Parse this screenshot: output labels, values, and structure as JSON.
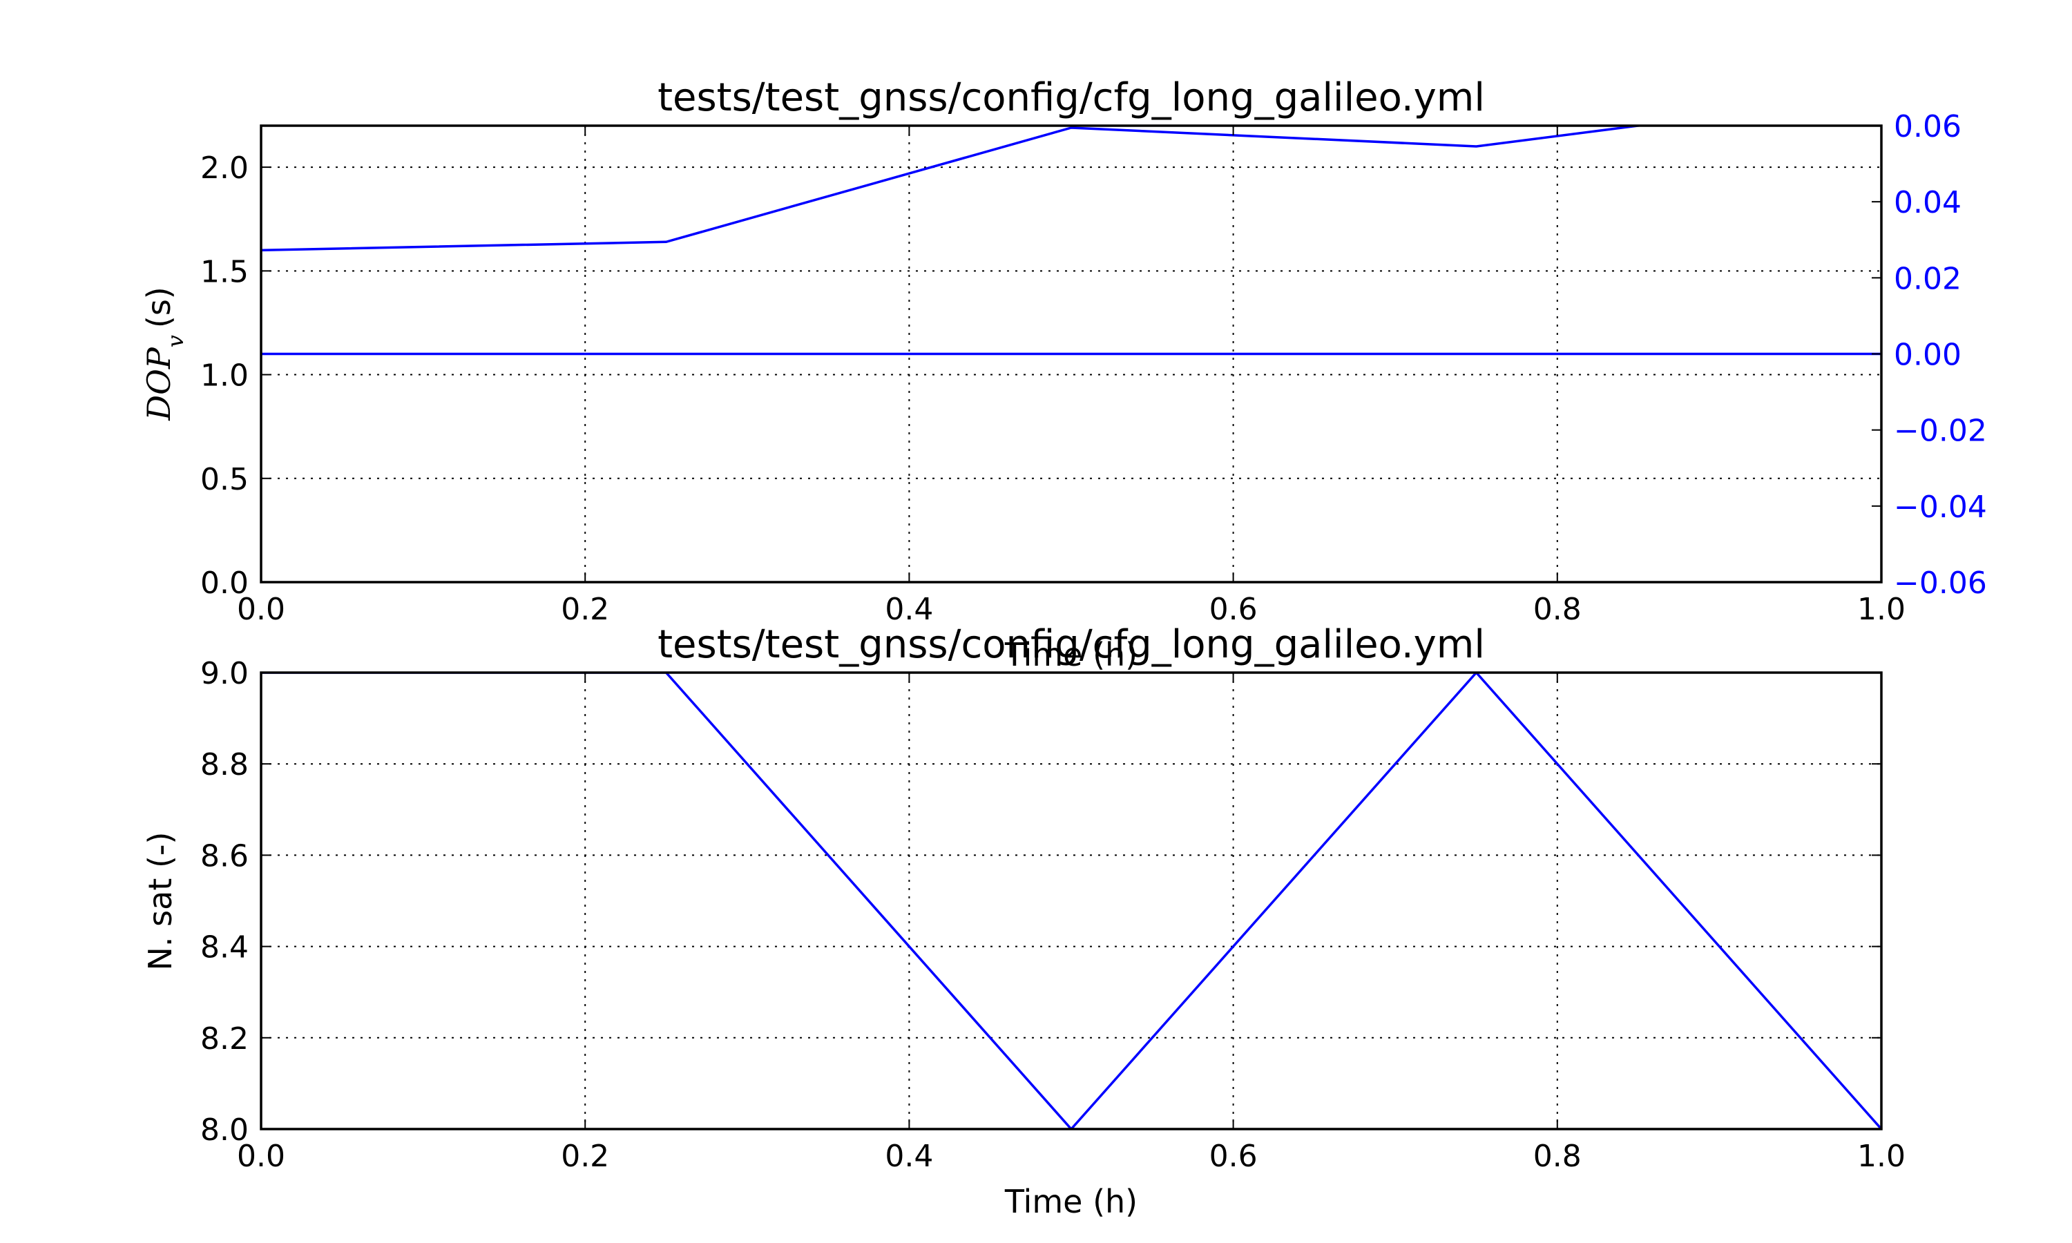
{
  "chart_data": [
    {
      "type": "line",
      "title": "tests/test_gnss/config/cfg_long_galileo.yml",
      "xlabel": "Time (h)",
      "ylabel_symbol": "DOP",
      "ylabel_subscript": "v",
      "ylabel_unit": "(s)",
      "xlim": [
        0.0,
        1.0
      ],
      "ylim": [
        0.0,
        2.2
      ],
      "ylim_right": [
        -0.06,
        0.06
      ],
      "xticks": [
        "0.0",
        "0.2",
        "0.4",
        "0.6",
        "0.8",
        "1.0"
      ],
      "yticks": [
        "0.0",
        "0.5",
        "1.0",
        "1.5",
        "2.0"
      ],
      "yticks_right": [
        "0.06",
        "0.04",
        "0.02",
        "0.00",
        "−0.02",
        "−0.04",
        "−0.06"
      ],
      "grid": true,
      "series": [
        {
          "axis": "left",
          "color": "#0000ff",
          "x": [
            0.0,
            0.25,
            0.5,
            0.75,
            1.0
          ],
          "y": [
            1.6,
            1.64,
            2.19,
            2.1,
            2.35
          ]
        },
        {
          "axis": "right",
          "color": "#0000ff",
          "x": [
            0.0,
            1.0
          ],
          "y": [
            0.0,
            0.0
          ]
        }
      ]
    },
    {
      "type": "line",
      "title": "tests/test_gnss/config/cfg_long_galileo.yml",
      "xlabel": "Time (h)",
      "ylabel": "N. sat (-)",
      "xlim": [
        0.0,
        1.0
      ],
      "ylim": [
        8.0,
        9.0
      ],
      "xticks": [
        "0.0",
        "0.2",
        "0.4",
        "0.6",
        "0.8",
        "1.0"
      ],
      "yticks": [
        "8.0",
        "8.2",
        "8.4",
        "8.6",
        "8.8",
        "9.0"
      ],
      "grid": true,
      "series": [
        {
          "axis": "left",
          "color": "#0000ff",
          "x": [
            0.0,
            0.25,
            0.5,
            0.75,
            1.0
          ],
          "y": [
            9.0,
            9.0,
            8.0,
            9.0,
            8.0
          ]
        }
      ]
    }
  ]
}
